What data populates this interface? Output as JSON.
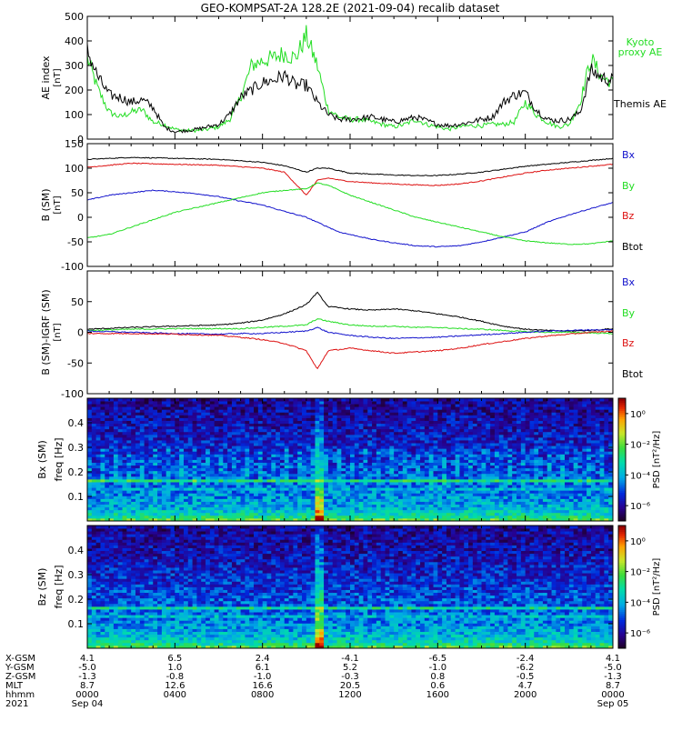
{
  "title": "GEO-KOMPSAT-2A 128.2E (2021-09-04) recalib dataset",
  "colors": {
    "black": "#000000",
    "green": "#22dd22",
    "red": "#dd1111",
    "blue": "#1111cc"
  },
  "chart_data": [
    {
      "id": "ae",
      "type": "line",
      "ylabel": "AE index",
      "yunit": "[nT]",
      "ylim": [
        0,
        500
      ],
      "yticks": [
        "0",
        "100",
        "200",
        "300",
        "400",
        "500"
      ],
      "ytick_values": [
        0,
        100,
        200,
        300,
        400,
        500
      ],
      "xlim": [
        0,
        24
      ],
      "legend": [
        "Kyoto",
        "proxy AE",
        "Themis AE"
      ],
      "series": [
        {
          "name": "Kyoto proxy AE",
          "color": "#22dd22",
          "x": [
            0,
            0.5,
            1,
            1.5,
            2,
            2.5,
            3,
            3.5,
            4,
            4.5,
            5,
            5.5,
            6,
            6.5,
            7,
            7.5,
            8,
            8.5,
            9,
            9.5,
            10,
            10.5,
            11,
            11.5,
            12,
            12.5,
            13,
            13.5,
            14,
            14.5,
            15,
            15.5,
            16,
            16.5,
            17,
            17.5,
            18,
            18.5,
            19,
            19.5,
            20,
            20.5,
            21,
            21.5,
            22,
            22.5,
            23,
            23.5,
            24
          ],
          "y": [
            330,
            200,
            110,
            90,
            110,
            120,
            70,
            60,
            40,
            35,
            35,
            40,
            50,
            80,
            170,
            300,
            320,
            330,
            350,
            330,
            420,
            300,
            120,
            90,
            80,
            80,
            70,
            60,
            50,
            60,
            80,
            60,
            50,
            40,
            50,
            55,
            55,
            60,
            60,
            70,
            150,
            100,
            70,
            50,
            60,
            150,
            330,
            250,
            230
          ]
        },
        {
          "name": "Themis AE",
          "color": "#000000",
          "x": [
            0,
            0.5,
            1,
            1.5,
            2,
            2.5,
            3,
            3.5,
            4,
            4.5,
            5,
            5.5,
            6,
            6.5,
            7,
            7.5,
            8,
            8.5,
            9,
            9.5,
            10,
            10.5,
            11,
            11.5,
            12,
            12.5,
            13,
            13.5,
            14,
            14.5,
            15,
            15.5,
            16,
            16.5,
            17,
            17.5,
            18,
            18.5,
            19,
            19.5,
            20,
            20.5,
            21,
            21.5,
            22,
            22.5,
            23,
            23.5,
            24
          ],
          "y": [
            360,
            250,
            180,
            170,
            150,
            160,
            130,
            50,
            30,
            35,
            40,
            50,
            60,
            100,
            170,
            200,
            230,
            240,
            260,
            220,
            220,
            150,
            100,
            80,
            80,
            85,
            90,
            80,
            70,
            80,
            90,
            75,
            60,
            55,
            60,
            70,
            80,
            90,
            150,
            180,
            190,
            120,
            80,
            75,
            80,
            110,
            280,
            250,
            240
          ]
        }
      ]
    },
    {
      "id": "bsm",
      "type": "line",
      "ylabel": "B (SM)",
      "yunit": "[nT]",
      "ylim": [
        -100,
        150
      ],
      "yticks": [
        "-100",
        "-50",
        "0",
        "50",
        "100",
        "150"
      ],
      "ytick_values": [
        -100,
        -50,
        0,
        50,
        100,
        150
      ],
      "xlim": [
        0,
        24
      ],
      "legend": [
        "Bx",
        "By",
        "Bz",
        "Btot"
      ],
      "series": [
        {
          "name": "Btot",
          "color": "#000000",
          "x": [
            0,
            2,
            4,
            6,
            8,
            9,
            10,
            10.5,
            11,
            11.5,
            12,
            13,
            14,
            15,
            16,
            17,
            18,
            19,
            20,
            21,
            22,
            23,
            24
          ],
          "y": [
            118,
            122,
            120,
            118,
            112,
            105,
            92,
            100,
            100,
            95,
            90,
            88,
            86,
            85,
            85,
            88,
            92,
            98,
            104,
            108,
            112,
            116,
            120
          ]
        },
        {
          "name": "Bz",
          "color": "#dd1111",
          "x": [
            0,
            2,
            4,
            6,
            8,
            9,
            10,
            10.5,
            11,
            11.5,
            12,
            13,
            14,
            15,
            16,
            17,
            18,
            19,
            20,
            21,
            22,
            23,
            24
          ],
          "y": [
            102,
            110,
            108,
            106,
            100,
            92,
            45,
            75,
            80,
            76,
            73,
            70,
            68,
            66,
            65,
            68,
            74,
            82,
            90,
            96,
            100,
            104,
            108
          ]
        },
        {
          "name": "Bx",
          "color": "#1111cc",
          "x": [
            0,
            1,
            2,
            3,
            4,
            5,
            6,
            7,
            8,
            9,
            10,
            10.5,
            11,
            11.5,
            12,
            13,
            14,
            15,
            16,
            17,
            18,
            19,
            20,
            21,
            22,
            23,
            24
          ],
          "y": [
            35,
            45,
            50,
            55,
            52,
            48,
            42,
            33,
            25,
            12,
            0,
            -10,
            -20,
            -30,
            -35,
            -45,
            -52,
            -58,
            -60,
            -58,
            -50,
            -40,
            -30,
            -10,
            5,
            18,
            30
          ]
        },
        {
          "name": "By",
          "color": "#22dd22",
          "x": [
            0,
            1,
            2,
            3,
            4,
            5,
            6,
            7,
            8,
            9,
            10,
            10.5,
            11,
            11.5,
            12,
            13,
            14,
            15,
            16,
            17,
            18,
            19,
            20,
            21,
            22,
            23,
            24
          ],
          "y": [
            -42,
            -35,
            -20,
            -5,
            10,
            20,
            30,
            40,
            50,
            55,
            58,
            70,
            65,
            55,
            45,
            30,
            15,
            0,
            -10,
            -20,
            -30,
            -40,
            -48,
            -52,
            -55,
            -54,
            -48
          ]
        }
      ]
    },
    {
      "id": "bsm-igrf",
      "type": "line",
      "ylabel": "B (SM)-IGRF (SM)",
      "yunit": "[nT]",
      "ylim": [
        -100,
        100
      ],
      "yticks": [
        "-100",
        "-50",
        "0",
        "50"
      ],
      "ytick_values": [
        -100,
        -50,
        0,
        50
      ],
      "xlim": [
        0,
        24
      ],
      "legend": [
        "Bx",
        "By",
        "Bz",
        "Btot"
      ],
      "series": [
        {
          "name": "Btot",
          "color": "#000000",
          "x": [
            0,
            2,
            4,
            6,
            7,
            8,
            9,
            10,
            10.5,
            11,
            12,
            13,
            14,
            15,
            16,
            17,
            18,
            19,
            20,
            21,
            22,
            23,
            24
          ],
          "y": [
            5,
            8,
            10,
            12,
            15,
            20,
            30,
            45,
            65,
            42,
            38,
            36,
            38,
            35,
            30,
            25,
            18,
            10,
            5,
            3,
            2,
            3,
            6
          ]
        },
        {
          "name": "By",
          "color": "#22dd22",
          "x": [
            0,
            2,
            4,
            6,
            7,
            8,
            9,
            10,
            10.5,
            11,
            12,
            13,
            14,
            15,
            16,
            17,
            18,
            19,
            20,
            21,
            22,
            23,
            24
          ],
          "y": [
            3,
            5,
            6,
            6,
            6,
            8,
            10,
            12,
            22,
            18,
            12,
            10,
            10,
            8,
            8,
            6,
            5,
            3,
            1,
            0,
            0,
            -1,
            -2
          ]
        },
        {
          "name": "Bx",
          "color": "#1111cc",
          "x": [
            0,
            2,
            4,
            6,
            7,
            8,
            9,
            10,
            10.5,
            11,
            12,
            13,
            14,
            15,
            16,
            17,
            18,
            19,
            20,
            21,
            22,
            23,
            24
          ],
          "y": [
            2,
            0,
            -2,
            -3,
            -2,
            -2,
            0,
            2,
            8,
            0,
            -5,
            -8,
            -10,
            -9,
            -8,
            -6,
            -4,
            -2,
            0,
            2,
            3,
            4,
            4
          ]
        },
        {
          "name": "Bz",
          "color": "#dd1111",
          "x": [
            0,
            2,
            4,
            6,
            7,
            8,
            9,
            10,
            10.5,
            11,
            12,
            13,
            14,
            15,
            16,
            17,
            18,
            19,
            20,
            21,
            22,
            23,
            24
          ],
          "y": [
            -2,
            -2,
            -3,
            -5,
            -8,
            -12,
            -18,
            -30,
            -60,
            -30,
            -26,
            -30,
            -34,
            -32,
            -30,
            -26,
            -20,
            -15,
            -10,
            -6,
            -3,
            0,
            2
          ]
        }
      ]
    },
    {
      "id": "bx-spec",
      "type": "heatmap",
      "ylabel": "Bx (SM)",
      "yunit_label": "freq [Hz]",
      "ylim": [
        0,
        0.5
      ],
      "yticks": [
        "0.1",
        "0.2",
        "0.3",
        "0.4"
      ],
      "ytick_values": [
        0.1,
        0.2,
        0.3,
        0.4
      ],
      "xlim": [
        0,
        24
      ],
      "colorbar": {
        "label": "PSD [nT²/Hz]",
        "ticks": [
          "10⁰",
          "10⁻²",
          "10⁻⁴",
          "10⁻⁶"
        ],
        "tick_exponents": [
          0,
          -2,
          -4,
          -6
        ],
        "range_exponents": [
          -7,
          1
        ]
      }
    },
    {
      "id": "bz-spec",
      "type": "heatmap",
      "ylabel": "Bz (SM)",
      "yunit_label": "freq [Hz]",
      "ylim": [
        0,
        0.5
      ],
      "yticks": [
        "0.1",
        "0.2",
        "0.3",
        "0.4"
      ],
      "ytick_values": [
        0.1,
        0.2,
        0.3,
        0.4
      ],
      "xlim": [
        0,
        24
      ],
      "colorbar": {
        "label": "PSD [nT²/Hz]",
        "ticks": [
          "10⁰",
          "10⁻²",
          "10⁻⁴",
          "10⁻⁶"
        ],
        "tick_exponents": [
          0,
          -2,
          -4,
          -6
        ],
        "range_exponents": [
          -7,
          1
        ]
      }
    }
  ],
  "x_axis": {
    "row_labels": [
      "X-GSM",
      "Y-GSM",
      "Z-GSM",
      "MLT",
      "hhmm",
      "2021"
    ],
    "tick_hours": [
      0,
      4,
      8,
      12,
      16,
      20,
      24
    ],
    "columns": [
      [
        "4.1",
        "-5.0",
        "-1.3",
        "8.7",
        "0000",
        "Sep 04"
      ],
      [
        "6.5",
        "1.0",
        "-0.8",
        "12.6",
        "0400",
        ""
      ],
      [
        "2.4",
        "6.1",
        "-1.0",
        "16.6",
        "0800",
        ""
      ],
      [
        "-4.1",
        "5.2",
        "-0.3",
        "20.5",
        "1200",
        ""
      ],
      [
        "-6.5",
        "-1.0",
        "0.8",
        "0.6",
        "1600",
        ""
      ],
      [
        "-2.4",
        "-6.2",
        "-0.5",
        "4.7",
        "2000",
        ""
      ],
      [
        "4.1",
        "-5.0",
        "-1.3",
        "8.7",
        "0000",
        "Sep 05"
      ]
    ]
  }
}
